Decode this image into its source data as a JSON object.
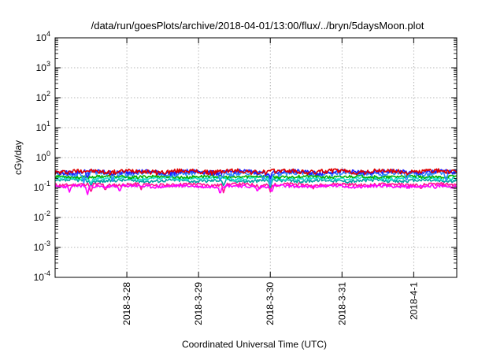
{
  "chart_data": {
    "type": "line",
    "title": "/data/run/goesPlots/archive/2018-04-01/13:00/flux/../bryn/5daysMoon.plot",
    "xlabel": "Coordinated Universal Time (UTC)",
    "ylabel": "cGy/day",
    "yscale": "log",
    "ylim": [
      0.0001,
      10000
    ],
    "yticks": [
      {
        "base": "10",
        "exp": "-4"
      },
      {
        "base": "10",
        "exp": "-3"
      },
      {
        "base": "10",
        "exp": "-2"
      },
      {
        "base": "10",
        "exp": "-1"
      },
      {
        "base": "10",
        "exp": "0"
      },
      {
        "base": "10",
        "exp": "1"
      },
      {
        "base": "10",
        "exp": "2"
      },
      {
        "base": "10",
        "exp": "3"
      },
      {
        "base": "10",
        "exp": "4"
      }
    ],
    "xlim": [
      -1.0,
      4.6
    ],
    "xticks": [
      {
        "label": "2018-3-28",
        "x": 0
      },
      {
        "label": "2018-3-29",
        "x": 1
      },
      {
        "label": "2018-3-30",
        "x": 2
      },
      {
        "label": "2018-3-31",
        "x": 3
      },
      {
        "label": "2018-4-1",
        "x": 4
      }
    ],
    "grid": true,
    "series": [
      {
        "color": "#ff1493",
        "base": 0.125,
        "amp": 0.015,
        "seed": 11,
        "dips": [
          [
            -0.5,
            0.062
          ],
          [
            -0.3,
            0.075
          ],
          [
            0.2,
            0.085
          ],
          [
            1.35,
            0.06
          ],
          [
            1.85,
            0.085
          ],
          [
            2.0,
            0.072
          ],
          [
            2.6,
            0.09
          ],
          [
            4.1,
            0.085
          ]
        ]
      },
      {
        "color": "#ff00ff",
        "base": 0.11,
        "amp": 0.012,
        "seed": 23,
        "dips": [
          [
            -0.8,
            0.07
          ],
          [
            -0.55,
            0.052
          ],
          [
            -0.1,
            0.07
          ],
          [
            1.3,
            0.055
          ],
          [
            1.82,
            0.07
          ],
          [
            2.02,
            0.065
          ],
          [
            4.3,
            0.09
          ]
        ]
      },
      {
        "color": "#00a0a0",
        "base": 0.17,
        "amp": 0.02,
        "seed": 37,
        "dips": [
          [
            -0.5,
            0.11
          ],
          [
            1.35,
            0.11
          ],
          [
            2.0,
            0.1
          ]
        ]
      },
      {
        "color": "#20e0d0",
        "base": 0.2,
        "amp": 0.025,
        "seed": 41,
        "dips": [
          [
            -0.5,
            0.13
          ],
          [
            2.0,
            0.12
          ]
        ]
      },
      {
        "color": "#00b000",
        "base": 0.23,
        "amp": 0.025,
        "seed": 53,
        "dips": []
      },
      {
        "color": "#2e8bff",
        "base": 0.3,
        "amp": 0.05,
        "seed": 67,
        "dips": [
          [
            -0.6,
            0.14
          ],
          [
            -0.2,
            0.16
          ],
          [
            1.3,
            0.15
          ],
          [
            1.9,
            0.16
          ],
          [
            2.0,
            0.13
          ],
          [
            3.9,
            0.15
          ],
          [
            4.45,
            0.16
          ]
        ]
      },
      {
        "color": "#2020ff",
        "base": 0.33,
        "amp": 0.055,
        "seed": 79,
        "dips": [
          [
            -0.55,
            0.2
          ],
          [
            2.0,
            0.2
          ]
        ]
      },
      {
        "color": "#e00000",
        "base": 0.345,
        "amp": 0.06,
        "seed": 97,
        "dips": []
      }
    ]
  }
}
